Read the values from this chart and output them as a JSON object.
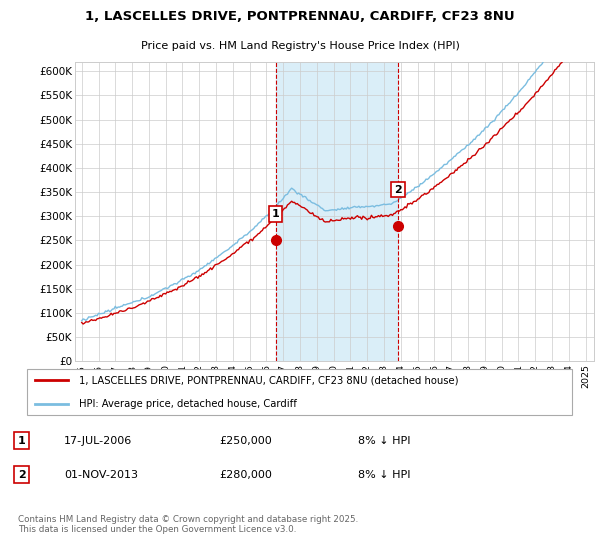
{
  "title1": "1, LASCELLES DRIVE, PONTPRENNAU, CARDIFF, CF23 8NU",
  "title2": "Price paid vs. HM Land Registry's House Price Index (HPI)",
  "ylim": [
    0,
    620000
  ],
  "yticks": [
    0,
    50000,
    100000,
    150000,
    200000,
    250000,
    300000,
    350000,
    400000,
    450000,
    500000,
    550000,
    600000
  ],
  "yticklabels": [
    "£0",
    "£50K",
    "£100K",
    "£150K",
    "£200K",
    "£250K",
    "£300K",
    "£350K",
    "£400K",
    "£450K",
    "£500K",
    "£550K",
    "£600K"
  ],
  "sale1_year": 2006.54,
  "sale1_price": 250000,
  "sale2_year": 2013.83,
  "sale2_price": 280000,
  "hpi_color": "#7bbde0",
  "price_color": "#cc0000",
  "shaded_color": "#daeef8",
  "grid_color": "#cccccc",
  "bg_color": "#ffffff",
  "legend1": "1, LASCELLES DRIVE, PONTPRENNAU, CARDIFF, CF23 8NU (detached house)",
  "legend2": "HPI: Average price, detached house, Cardiff",
  "ann1_date": "17-JUL-2006",
  "ann1_price": "£250,000",
  "ann1_hpi": "8% ↓ HPI",
  "ann2_date": "01-NOV-2013",
  "ann2_price": "£280,000",
  "ann2_hpi": "8% ↓ HPI",
  "footnote": "Contains HM Land Registry data © Crown copyright and database right 2025.\nThis data is licensed under the Open Government Licence v3.0."
}
